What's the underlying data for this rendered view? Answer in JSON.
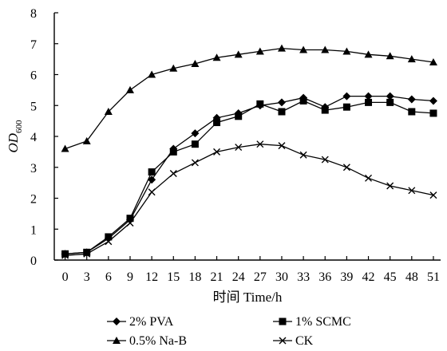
{
  "chart_data": {
    "type": "line",
    "x": [
      0,
      3,
      6,
      9,
      12,
      15,
      18,
      21,
      24,
      27,
      30,
      33,
      36,
      39,
      42,
      45,
      48,
      51
    ],
    "xlabel": "时间 Time/h",
    "ylabel_main": "OD",
    "ylabel_sub": "600",
    "xlim": [
      -1.5,
      52
    ],
    "ylim": [
      0,
      8
    ],
    "yticks": [
      0,
      1,
      2,
      3,
      4,
      5,
      6,
      7,
      8
    ],
    "grid": false,
    "legend_position": "bottom",
    "series": [
      {
        "name": "2% PVA",
        "marker": "diamond",
        "values": [
          0.2,
          0.25,
          0.7,
          1.3,
          2.6,
          3.6,
          4.1,
          4.6,
          4.75,
          5.0,
          5.1,
          5.25,
          4.95,
          5.3,
          5.3,
          5.3,
          5.2,
          5.15
        ]
      },
      {
        "name": "1% SCMC",
        "marker": "square",
        "values": [
          0.2,
          0.25,
          0.75,
          1.35,
          2.85,
          3.5,
          3.75,
          4.45,
          4.65,
          5.05,
          4.8,
          5.15,
          4.85,
          4.95,
          5.1,
          5.1,
          4.8,
          4.75
        ]
      },
      {
        "name": "0.5% Na-B",
        "marker": "triangle",
        "values": [
          3.6,
          3.85,
          4.8,
          5.5,
          6.0,
          6.2,
          6.35,
          6.55,
          6.65,
          6.75,
          6.85,
          6.8,
          6.8,
          6.75,
          6.65,
          6.6,
          6.5,
          6.4
        ]
      },
      {
        "name": "CK",
        "marker": "x",
        "values": [
          0.15,
          0.2,
          0.6,
          1.2,
          2.2,
          2.8,
          3.15,
          3.5,
          3.65,
          3.75,
          3.7,
          3.4,
          3.25,
          3.0,
          2.65,
          2.4,
          2.25,
          2.1
        ]
      }
    ]
  }
}
